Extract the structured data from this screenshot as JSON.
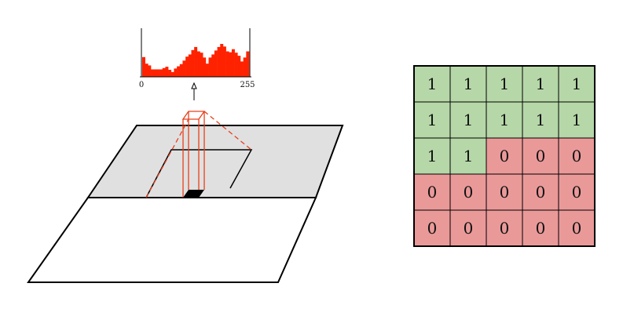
{
  "histogram": {
    "x_min_label": "0",
    "x_max_label": "255",
    "bar_heights": [
      0.45,
      0.3,
      0.26,
      0.17,
      0.17,
      0.17,
      0.17,
      0.2,
      0.23,
      0.16,
      0.11,
      0.19,
      0.24,
      0.29,
      0.37,
      0.46,
      0.51,
      0.61,
      0.68,
      0.58,
      0.55,
      0.44,
      0.3,
      0.44,
      0.51,
      0.6,
      0.68,
      0.75,
      0.69,
      0.58,
      0.56,
      0.63,
      0.55,
      0.48,
      0.35,
      0.44,
      0.58
    ],
    "bar_color": "#ff2200"
  },
  "grid": {
    "rows": [
      [
        "1",
        "1",
        "1",
        "1",
        "1"
      ],
      [
        "1",
        "1",
        "1",
        "1",
        "1"
      ],
      [
        "1",
        "1",
        "0",
        "0",
        "0"
      ],
      [
        "0",
        "0",
        "0",
        "0",
        "0"
      ],
      [
        "0",
        "0",
        "0",
        "0",
        "0"
      ]
    ],
    "color_one": "#b6d7a8",
    "color_zero": "#ea9999"
  },
  "colors": {
    "plane_fill": "#e0e0e0",
    "highlight": "#e8401c",
    "outline": "#000000"
  }
}
